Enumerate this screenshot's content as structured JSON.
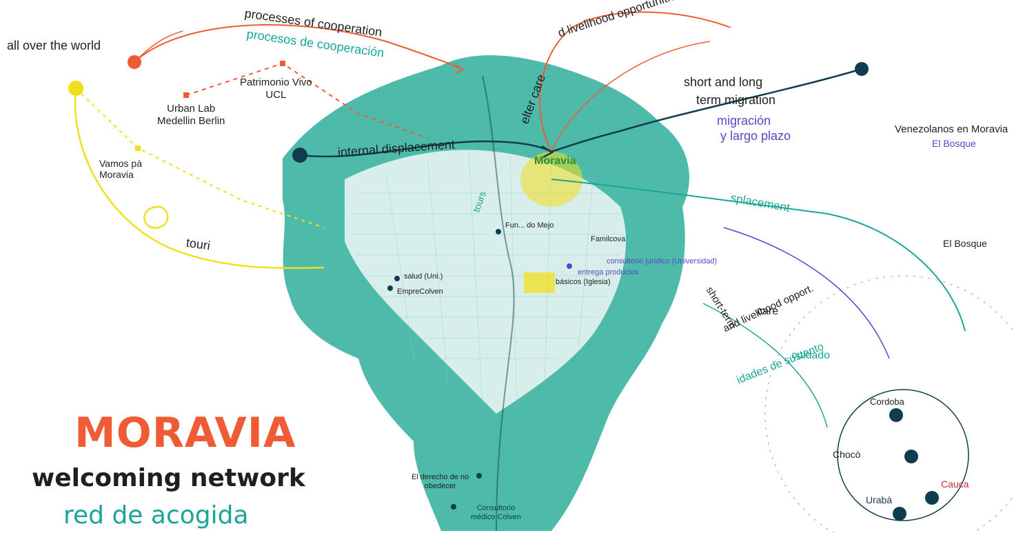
{
  "colors": {
    "accent_orange": "#ef5b35",
    "accent_teal": "#1aa597",
    "accent_yellow": "#f2df1c",
    "accent_navy": "#0f3d4f",
    "accent_purple": "#5c43c8",
    "map_green": "#1aa597"
  },
  "title": {
    "main": "MORAVIA",
    "sub_en": "welcoming network",
    "sub_es": "red de acogida"
  },
  "left_labels": {
    "world": "all over the world",
    "patrimonio_line1": "Patrimonio Vivo",
    "patrimonio_line2": "UCL",
    "urban_lab_line1": "Urban Lab",
    "urban_lab_line2": "Medellin Berlin",
    "vamos_line1": "Vamos pà",
    "vamos_line2": "Moravia",
    "tour": "touri"
  },
  "curve_labels": {
    "processes_coop": "processes of cooperation",
    "procesos_coop": "procesos de cooperación",
    "shelter": "elter care",
    "livelihood": "d livelihood opportunities",
    "short_long": "short and long",
    "term_migration": "term migration",
    "migracion": "migración",
    "largo_plazo": "y largo plazo",
    "internal_displacement": "internal displacement",
    "displacement": "splacement",
    "tours": "tours",
    "short_term": "short-term",
    "shelter_care": "and livelihood opport.",
    "care": "care",
    "oportunidades": "idades de sustento",
    "cuidado": "cuidado"
  },
  "map_labels": {
    "moravia": "Moravia",
    "venezolanos": "Venezolanos en Moravia",
    "el_bosque_1": "El Bosque",
    "el_bosque_2": "El Bosque",
    "fundacion": "Fun... do Mejo",
    "familcove": "Familcova",
    "consultorio_juridico": "consultorio jurídico (Universidad)",
    "entrega": "entrega productos",
    "basicos": "básicos (Iglesia)",
    "salud": "salud (Uni.)",
    "emprecolven": "EmpreColven",
    "derecho_line1": "El derecho de no",
    "derecho_line2": "obedecer",
    "consultorio_line1": "Consultorio",
    "consultorio_line2": "médico Colven"
  },
  "right_circle": {
    "cordoba": "Cordoba",
    "choco": "Chocò",
    "cauca": "Cauca",
    "uraba": "Urabà"
  }
}
